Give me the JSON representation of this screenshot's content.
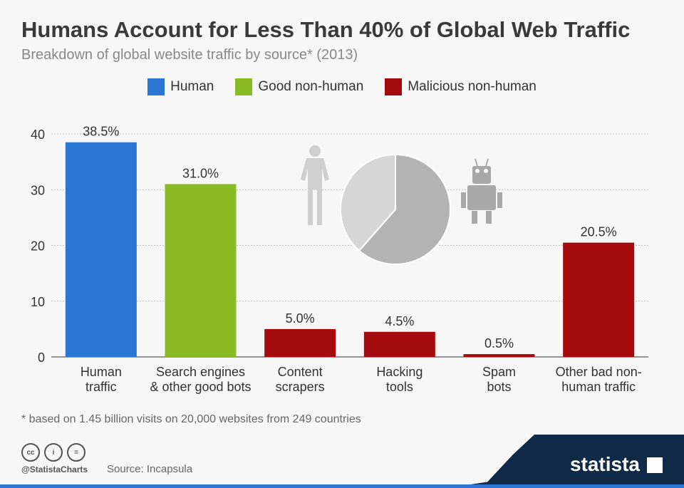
{
  "title": "Humans Account for Less Than 40% of Global Web Traffic",
  "subtitle": "Breakdown of global website traffic by source* (2013)",
  "footnote": "* based on 1.45 billion visits on 20,000 websites from 249 countries",
  "handle": "@StatistaCharts",
  "source": "Source: Incapsula",
  "brand": "statista",
  "colors": {
    "human": "#2a76d2",
    "good": "#8aba24",
    "bad": "#a50b0e",
    "pie_human": "#d6d6d6",
    "pie_bot": "#b3b3b3"
  },
  "chart_data": {
    "type": "bar",
    "title": "Humans Account for Less Than 40% of Global Web Traffic",
    "legend": [
      {
        "label": "Human",
        "color": "#2a76d2"
      },
      {
        "label": "Good non-human",
        "color": "#8aba24"
      },
      {
        "label": "Malicious non-human",
        "color": "#a50b0e"
      }
    ],
    "legend_position": "top",
    "categories": [
      [
        "Human",
        "traffic"
      ],
      [
        "Search engines",
        "& other good bots"
      ],
      [
        "Content",
        "scrapers"
      ],
      [
        "Hacking",
        "tools"
      ],
      [
        "Spam",
        "bots"
      ],
      [
        "Other bad non-",
        "human traffic"
      ]
    ],
    "values": [
      38.5,
      31.0,
      5.0,
      4.5,
      0.5,
      20.5
    ],
    "labels": [
      "38.5%",
      "31.0%",
      "5.0%",
      "4.5%",
      "0.5%",
      "20.5%"
    ],
    "groups": [
      "human",
      "good",
      "bad",
      "bad",
      "bad",
      "bad"
    ],
    "yticks": [
      0,
      10,
      20,
      30,
      40
    ],
    "ylim": [
      0,
      40
    ],
    "grid": true,
    "pie": {
      "human": 38.5,
      "non_human": 61.5
    }
  }
}
